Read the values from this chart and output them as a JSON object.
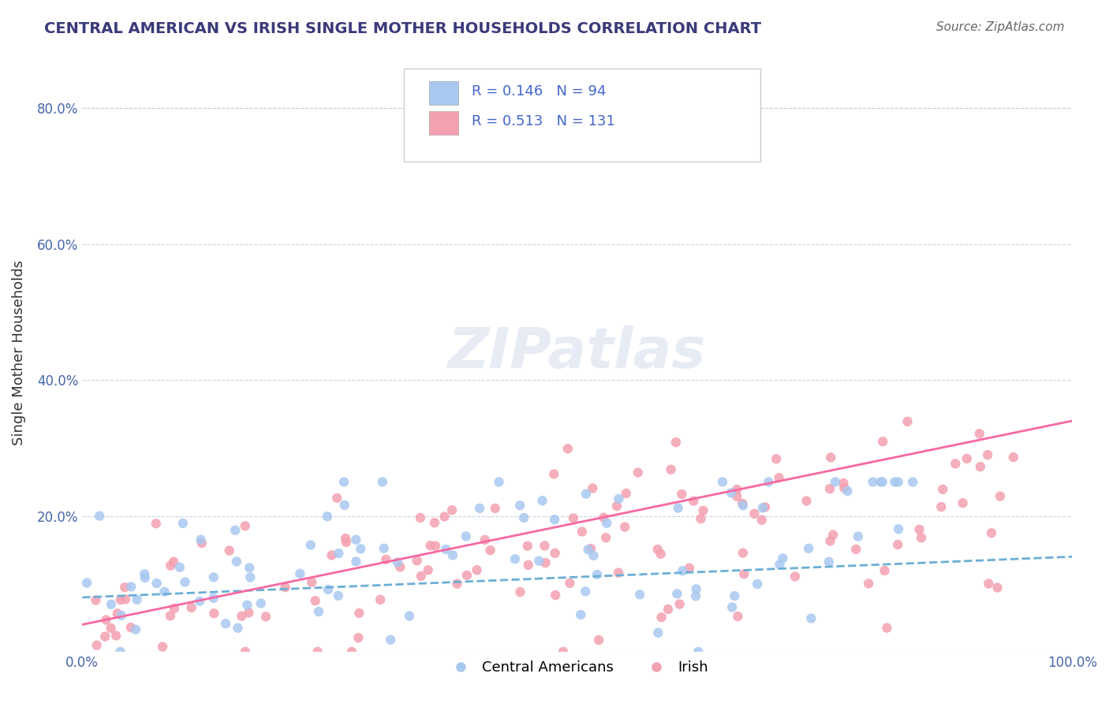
{
  "title": "CENTRAL AMERICAN VS IRISH SINGLE MOTHER HOUSEHOLDS CORRELATION CHART",
  "source": "Source: ZipAtlas.com",
  "xlabel": "",
  "ylabel": "Single Mother Households",
  "legend_labels": [
    "Central Americans",
    "Irish"
  ],
  "R_central": 0.146,
  "N_central": 94,
  "R_irish": 0.513,
  "N_irish": 131,
  "xlim": [
    0.0,
    1.0
  ],
  "ylim": [
    0.0,
    0.88
  ],
  "x_ticks": [
    0.0,
    0.1,
    0.2,
    0.3,
    0.4,
    0.5,
    0.6,
    0.7,
    0.8,
    0.9,
    1.0
  ],
  "x_tick_labels": [
    "0.0%",
    "",
    "",
    "",
    "",
    "",
    "",
    "",
    "",
    "",
    "100.0%"
  ],
  "y_ticks": [
    0.0,
    0.2,
    0.4,
    0.6,
    0.8
  ],
  "y_tick_labels": [
    "",
    "20.0%",
    "40.0%",
    "60.0%",
    "80.0%"
  ],
  "color_central": "#a8c8f0",
  "color_irish": "#f4a0b0",
  "line_color_central": "#6baed6",
  "line_color_irish": "#f768a1",
  "background_color": "#ffffff",
  "grid_color": "#c0c8d8",
  "watermark": "ZIPatlas",
  "title_color": "#3a3a7a",
  "source_color": "#666666"
}
